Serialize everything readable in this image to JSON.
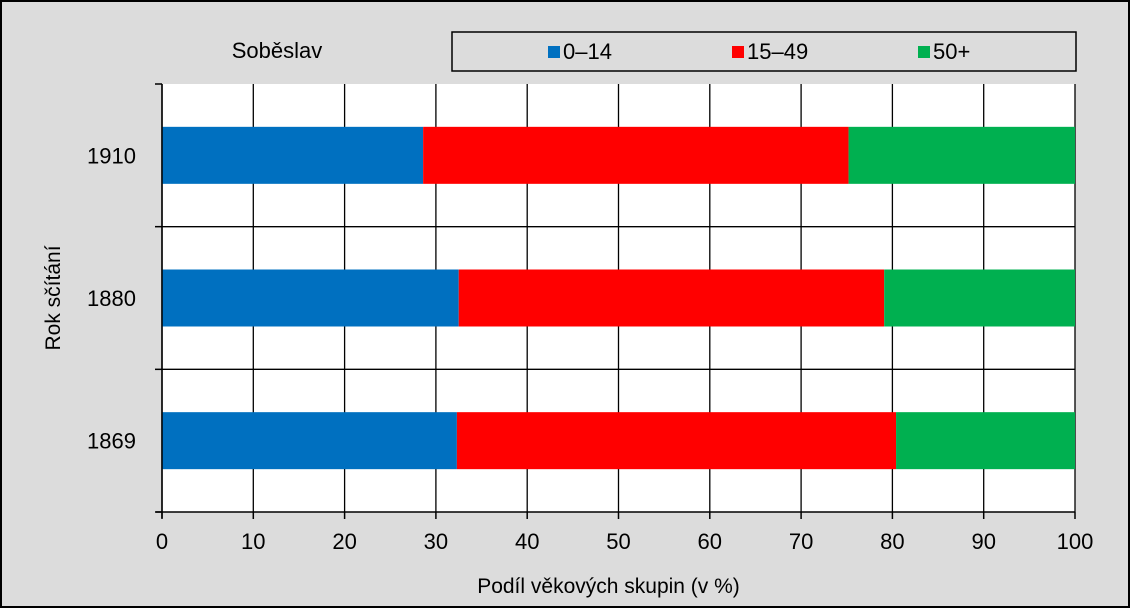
{
  "chart_data": {
    "type": "bar",
    "orientation": "horizontal",
    "stacked": true,
    "title": "Soběslav",
    "xlabel": "Podíl věkových skupin (v %)",
    "ylabel": "Rok sčítání",
    "xlim": [
      0,
      100
    ],
    "x_ticks": [
      0,
      10,
      20,
      30,
      40,
      50,
      60,
      70,
      80,
      90,
      100
    ],
    "categories": [
      "1910",
      "1880",
      "1869"
    ],
    "series": [
      {
        "name": "0–14",
        "color": "#0070c0",
        "values": [
          28.6,
          32.5,
          32.3
        ]
      },
      {
        "name": "15–49",
        "color": "#ff0000",
        "values": [
          46.6,
          46.6,
          48.1
        ]
      },
      {
        "name": "50+",
        "color": "#00b050",
        "values": [
          24.8,
          20.9,
          19.6
        ]
      }
    ],
    "grid": true,
    "legend_position": "top",
    "background": "#dcdcdc",
    "plot_background": "#ffffff"
  }
}
